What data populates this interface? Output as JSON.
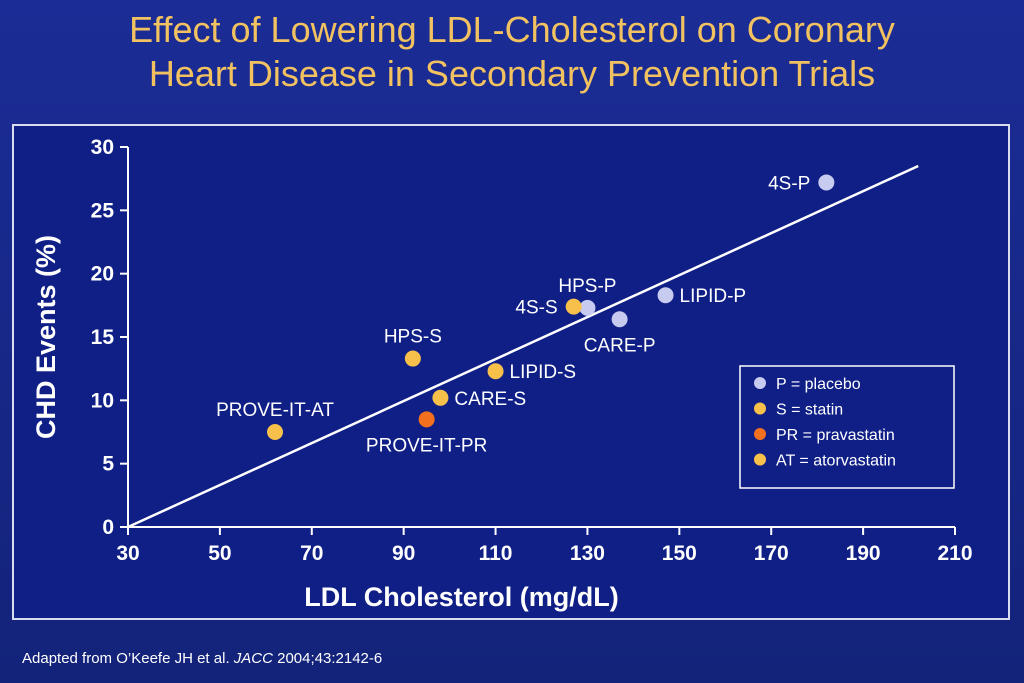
{
  "slide": {
    "title_line1": "Effect of Lowering LDL-Cholesterol on Coronary",
    "title_line2": "Heart Disease in Secondary Prevention Trials",
    "footnote_main": "Adapted from O’Keefe JH et al.",
    "footnote_journal": "JACC",
    "footnote_ref": "2004;43:2142-6"
  },
  "colors": {
    "placebo": "#c8cbf0",
    "statin": "#f7c04a",
    "pravastatin": "#f2701e",
    "atorvastatin": "#f7c04a",
    "axis": "#ffffff",
    "title": "#f2c261"
  },
  "chart_data": {
    "type": "scatter",
    "title": "",
    "xlabel": "LDL Cholesterol (mg/dL)",
    "ylabel": "CHD Events (%)",
    "xlim": [
      30,
      210
    ],
    "ylim": [
      0,
      30
    ],
    "xticks": [
      30,
      50,
      70,
      90,
      110,
      130,
      150,
      170,
      190,
      210
    ],
    "yticks": [
      0,
      5,
      10,
      15,
      20,
      25,
      30
    ],
    "grid": false,
    "legend_position": "lower-right",
    "legend": [
      {
        "group": "placebo",
        "label": "P = placebo"
      },
      {
        "group": "statin",
        "label": "S = statin"
      },
      {
        "group": "pravastatin",
        "label": "PR = pravastatin"
      },
      {
        "group": "atorvastatin",
        "label": "AT = atorvastatin"
      }
    ],
    "points": [
      {
        "label": "4S-P",
        "x": 182,
        "y": 27.2,
        "group": "placebo",
        "label_side": "left"
      },
      {
        "label": "HPS-P",
        "x": 130,
        "y": 17.3,
        "group": "placebo",
        "label_side": "above"
      },
      {
        "label": "LIPID-P",
        "x": 147,
        "y": 18.3,
        "group": "placebo",
        "label_side": "right"
      },
      {
        "label": "CARE-P",
        "x": 137,
        "y": 16.4,
        "group": "placebo",
        "label_side": "below"
      },
      {
        "label": "4S-S",
        "x": 127,
        "y": 17.4,
        "group": "statin",
        "label_side": "left"
      },
      {
        "label": "HPS-S",
        "x": 92,
        "y": 13.3,
        "group": "statin",
        "label_side": "above"
      },
      {
        "label": "LIPID-S",
        "x": 110,
        "y": 12.3,
        "group": "statin",
        "label_side": "right"
      },
      {
        "label": "CARE-S",
        "x": 98,
        "y": 10.2,
        "group": "statin",
        "label_side": "right"
      },
      {
        "label": "PROVE-IT-PR",
        "x": 95,
        "y": 8.5,
        "group": "pravastatin",
        "label_side": "below"
      },
      {
        "label": "PROVE-IT-AT",
        "x": 62,
        "y": 7.5,
        "group": "atorvastatin",
        "label_side": "above"
      }
    ],
    "trendline": {
      "x": [
        30,
        202
      ],
      "y": [
        0,
        28.5
      ]
    }
  }
}
